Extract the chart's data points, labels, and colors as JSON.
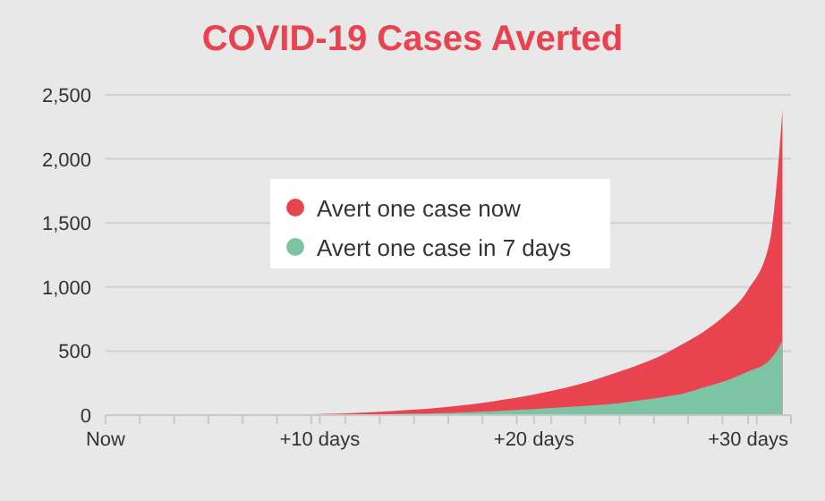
{
  "chart_data": {
    "type": "area",
    "title": "COVID-19 Cases Averted",
    "x": [
      0,
      8,
      10,
      12,
      14,
      16,
      18,
      20,
      22,
      24,
      25,
      26,
      27,
      28,
      29,
      30,
      31,
      31.3,
      31.6
    ],
    "series": [
      {
        "name": "Avert one case now",
        "color": "#e8434f",
        "values": [
          0,
          0,
          8,
          20,
          38,
          65,
          105,
          160,
          235,
          340,
          400,
          470,
          560,
          660,
          790,
          980,
          1350,
          1750,
          2380
        ]
      },
      {
        "name": "Avert one case in 7 days",
        "color": "#7cc4a3",
        "values": [
          0,
          0,
          2,
          5,
          10,
          18,
          30,
          47,
          68,
          95,
          117,
          140,
          170,
          220,
          270,
          340,
          430,
          490,
          584
        ]
      }
    ],
    "xlim": [
      0,
      32
    ],
    "xticks": [
      {
        "value": 0,
        "label": "Now"
      },
      {
        "value": 1.6,
        "label": null
      },
      {
        "value": 3.2,
        "label": null
      },
      {
        "value": 4.8,
        "label": null
      },
      {
        "value": 6.4,
        "label": null
      },
      {
        "value": 8,
        "label": null
      },
      {
        "value": 9.6,
        "label": null
      },
      {
        "value": 10,
        "label": "+10 days"
      },
      {
        "value": 11.2,
        "label": null
      },
      {
        "value": 12.8,
        "label": null
      },
      {
        "value": 14.4,
        "label": null
      },
      {
        "value": 16,
        "label": null
      },
      {
        "value": 17.6,
        "label": null
      },
      {
        "value": 19.2,
        "label": null
      },
      {
        "value": 20,
        "label": "+20 days"
      },
      {
        "value": 20.8,
        "label": null
      },
      {
        "value": 22.4,
        "label": null
      },
      {
        "value": 24,
        "label": null
      },
      {
        "value": 25.6,
        "label": null
      },
      {
        "value": 27.2,
        "label": null
      },
      {
        "value": 28.8,
        "label": null
      },
      {
        "value": 30,
        "label": "+30 days"
      },
      {
        "value": 30.4,
        "label": null
      },
      {
        "value": 32,
        "label": null
      }
    ],
    "ylim": [
      0,
      2500
    ],
    "yticks": [
      {
        "value": 0,
        "label": "0"
      },
      {
        "value": 500,
        "label": "500"
      },
      {
        "value": 1000,
        "label": "1,000"
      },
      {
        "value": 1500,
        "label": "1,500"
      },
      {
        "value": 2000,
        "label": "2,000"
      },
      {
        "value": 2500,
        "label": "2,500"
      }
    ],
    "grid": "y",
    "legend": "top"
  }
}
